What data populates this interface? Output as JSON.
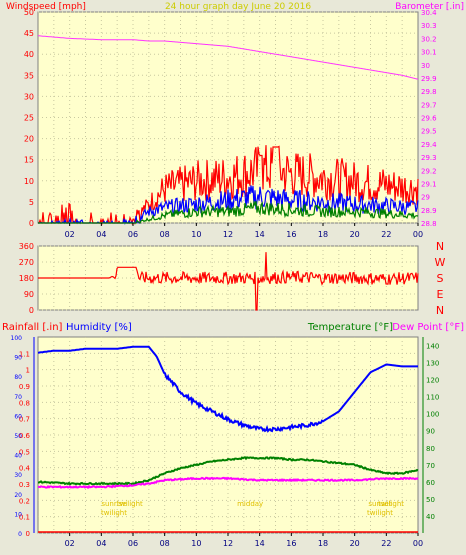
{
  "header": {
    "left_axis_title": "Windspeed [mph]",
    "center_title": "24 hour graph day June 20 2016",
    "right_axis_title": "Barometer [.in]"
  },
  "chart_data": [
    {
      "type": "line",
      "title": "24 hour graph day June 20 2016",
      "xlabel": "",
      "x_ticks": [
        "02",
        "04",
        "06",
        "08",
        "10",
        "12",
        "14",
        "16",
        "18",
        "20",
        "22",
        "00"
      ],
      "xlim": [
        0,
        24
      ],
      "y_left": {
        "label": "Windspeed [mph]",
        "range": [
          0,
          50
        ],
        "ticks": [
          0,
          5,
          10,
          15,
          20,
          25,
          30,
          35,
          40,
          45,
          50
        ]
      },
      "y_right": {
        "label": "Barometer [.in]",
        "range": [
          28.8,
          30.4
        ],
        "ticks": [
          "28.8",
          "28.9",
          "29",
          "29.1",
          "29.2",
          "29.3",
          "29.4",
          "29.5",
          "29.6",
          "29.7",
          "29.8",
          "29.9",
          "30",
          "30.1",
          "30.2",
          "30.3",
          "30.4"
        ]
      },
      "series": [
        {
          "key": "barometer",
          "color": "#ff33ff",
          "axis": "right",
          "x": [
            0,
            2,
            4,
            6,
            7,
            8,
            9,
            10,
            11,
            12,
            13,
            14,
            15,
            16,
            17,
            18,
            19,
            20,
            21,
            22,
            23,
            24
          ],
          "y": [
            30.22,
            30.2,
            30.19,
            30.19,
            30.18,
            30.18,
            30.17,
            30.16,
            30.15,
            30.14,
            30.12,
            30.1,
            30.08,
            30.06,
            30.04,
            30.02,
            30.0,
            29.98,
            29.96,
            29.94,
            29.92,
            29.89
          ]
        },
        {
          "key": "wind_gust",
          "color": "#ff0000",
          "axis": "left",
          "x": [
            0,
            2,
            4,
            6,
            7,
            8,
            10,
            12,
            14,
            15,
            16,
            18,
            20,
            22,
            24
          ],
          "y": [
            1,
            2,
            1,
            1,
            5,
            9,
            11,
            12,
            14,
            14,
            13,
            12,
            11,
            10,
            9
          ]
        },
        {
          "key": "wind_avg",
          "color": "#0000ff",
          "axis": "left",
          "x": [
            0,
            2,
            4,
            6,
            7,
            8,
            10,
            12,
            14,
            16,
            18,
            20,
            22,
            24
          ],
          "y": [
            0,
            0.5,
            0.5,
            0.5,
            3,
            4,
            5,
            6,
            7,
            6,
            5.5,
            5,
            4.5,
            4
          ]
        },
        {
          "key": "wind_min",
          "color": "#008000",
          "axis": "left",
          "x": [
            0,
            2,
            4,
            6,
            7,
            8,
            10,
            12,
            14,
            16,
            18,
            20,
            22,
            24
          ],
          "y": [
            0,
            0,
            0,
            0,
            1,
            2,
            3,
            3,
            4,
            3.5,
            3,
            3,
            2.5,
            2
          ]
        }
      ]
    },
    {
      "type": "line",
      "title": "",
      "x_ticks": [
        "02",
        "04",
        "06",
        "08",
        "10",
        "12",
        "14",
        "16",
        "18",
        "20",
        "22",
        "00"
      ],
      "xlim": [
        0,
        24
      ],
      "y_left": {
        "label": "",
        "range": [
          0,
          360
        ],
        "ticks": [
          0,
          90,
          180,
          270,
          360
        ]
      },
      "right_labels": [
        "N",
        "W",
        "S",
        "E",
        "N"
      ],
      "series": [
        {
          "key": "wind_direction",
          "color": "#ff0000",
          "x": [
            0,
            4.5,
            4.7,
            4.9,
            5.0,
            6.2,
            6.4,
            6.6,
            8,
            10,
            12,
            14,
            16,
            18,
            20,
            22,
            24
          ],
          "y": [
            180,
            180,
            190,
            175,
            240,
            240,
            170,
            180,
            180,
            180,
            180,
            180,
            185,
            180,
            180,
            175,
            180
          ],
          "noise_from": 6.5,
          "noise_amplitude": 35,
          "spikes": [
            {
              "x": 13.8,
              "y": 0
            },
            {
              "x": 14.4,
              "y": 325
            }
          ]
        }
      ]
    },
    {
      "type": "line",
      "title": "",
      "x_ticks": [
        "02",
        "04",
        "06",
        "08",
        "10",
        "12",
        "14",
        "16",
        "18",
        "20",
        "22",
        "00"
      ],
      "xlim": [
        0,
        24
      ],
      "legend": [
        "Rainfall [.in]",
        "Humidity [%]",
        "Temperature [°F]",
        "Dew Point [°F]"
      ],
      "y_rain": {
        "label": "Rainfall [.in]",
        "range": [
          0,
          1.2
        ],
        "ticks": [
          "0",
          "0.1",
          "0.2",
          "0.3",
          "0.4",
          "0.5",
          "0.6",
          "0.7",
          "0.8",
          "0.9",
          "1",
          "1.1"
        ]
      },
      "y_humidity": {
        "label": "Humidity [%]",
        "range": [
          0,
          100
        ],
        "ticks": [
          0,
          10,
          20,
          30,
          40,
          50,
          60,
          70,
          80,
          90,
          100
        ]
      },
      "y_temp": {
        "label": "Temperature [°F]",
        "range": [
          30,
          145
        ],
        "ticks": [
          40,
          50,
          60,
          70,
          80,
          90,
          100,
          110,
          120,
          130,
          140
        ]
      },
      "series": [
        {
          "key": "humidity",
          "color": "#0000ff",
          "axis": "humidity",
          "x": [
            0,
            1,
            2,
            3,
            4,
            5,
            6,
            7,
            7.5,
            8,
            9,
            10,
            11,
            12,
            13,
            14,
            15,
            16,
            17,
            18,
            19,
            20,
            21,
            22,
            23,
            24
          ],
          "y": [
            92,
            93,
            93,
            94,
            94,
            94,
            95,
            95,
            90,
            81,
            72,
            66,
            62,
            58,
            55,
            53,
            53,
            54,
            55,
            57,
            62,
            72,
            82,
            86,
            85,
            85
          ]
        },
        {
          "key": "temperature",
          "color": "#008000",
          "axis": "temp",
          "x": [
            0,
            2,
            4,
            6,
            7,
            8,
            9,
            10,
            11,
            12,
            13,
            14,
            15,
            16,
            17,
            18,
            19,
            20,
            21,
            22,
            23,
            24
          ],
          "y": [
            60,
            59,
            59,
            59,
            61,
            65,
            68,
            70,
            72,
            73,
            74,
            74,
            74,
            73,
            73,
            72,
            71,
            70,
            67,
            65,
            65,
            67
          ]
        },
        {
          "key": "dew_point",
          "color": "#ff00ff",
          "axis": "temp",
          "x": [
            0,
            2,
            4,
            6,
            7,
            8,
            10,
            12,
            14,
            16,
            18,
            20,
            22,
            24
          ],
          "y": [
            57,
            57,
            57,
            58,
            59,
            61,
            62,
            62,
            61,
            61,
            61,
            61,
            62,
            62
          ]
        }
      ],
      "annotations": [
        {
          "x": 4.8,
          "lines": [
            "sunrise",
            "twilight"
          ]
        },
        {
          "x": 5.8,
          "lines": [
            "twilight"
          ]
        },
        {
          "x": 13.4,
          "lines": [
            "midday"
          ]
        },
        {
          "x": 21.6,
          "lines": [
            "sunset",
            "twilight"
          ]
        },
        {
          "x": 22.3,
          "lines": [
            "twilight"
          ]
        }
      ]
    }
  ]
}
